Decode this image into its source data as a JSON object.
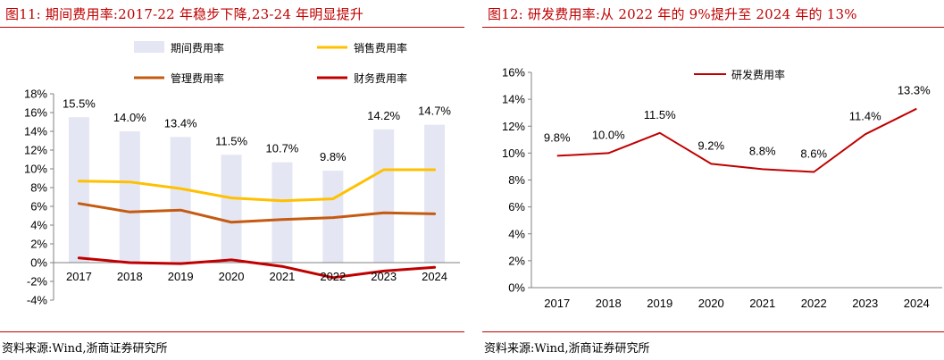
{
  "left": {
    "title": "图11:  期间费用率:2017-22 年稳步下降,23-24 年明显提升",
    "source": "资料来源:Wind,浙商证券研究所",
    "chart_data": {
      "type": "bar",
      "categories": [
        "2017",
        "2018",
        "2019",
        "2020",
        "2021",
        "2022",
        "2023",
        "2024"
      ],
      "ylim": [
        -4,
        18
      ],
      "yticks": [
        "-4%",
        "-2%",
        "0%",
        "2%",
        "4%",
        "6%",
        "8%",
        "10%",
        "12%",
        "14%",
        "16%",
        "18%"
      ],
      "legend_position": "top",
      "series": [
        {
          "name": "期间费用率",
          "kind": "bar",
          "color": "#e4e6f3",
          "values": [
            15.5,
            14.0,
            13.4,
            11.5,
            10.7,
            9.8,
            14.2,
            14.7
          ],
          "labels": [
            "15.5%",
            "14.0%",
            "13.4%",
            "11.5%",
            "10.7%",
            "9.8%",
            "14.2%",
            "14.7%"
          ]
        },
        {
          "name": "销售费用率",
          "kind": "line",
          "color": "#ffc000",
          "values": [
            8.7,
            8.6,
            7.9,
            6.9,
            6.6,
            6.8,
            9.9,
            9.9
          ]
        },
        {
          "name": "管理费用率",
          "kind": "line",
          "color": "#c55a11",
          "values": [
            6.3,
            5.4,
            5.6,
            4.3,
            4.6,
            4.8,
            5.3,
            5.2
          ]
        },
        {
          "name": "财务费用率",
          "kind": "line",
          "color": "#c00000",
          "values": [
            0.5,
            0.0,
            -0.1,
            0.3,
            -0.4,
            -1.6,
            -0.9,
            -0.5
          ]
        }
      ]
    }
  },
  "right": {
    "title": "图12:  研发费用率:从 2022 年的 9%提升至 2024 年的 13%",
    "source": "资料来源:Wind,浙商证券研究所",
    "chart_data": {
      "type": "line",
      "categories": [
        "2017",
        "2018",
        "2019",
        "2020",
        "2021",
        "2022",
        "2023",
        "2024"
      ],
      "ylim": [
        0,
        16
      ],
      "yticks": [
        "0%",
        "2%",
        "4%",
        "6%",
        "8%",
        "10%",
        "12%",
        "14%",
        "16%"
      ],
      "legend_position": "top",
      "series": [
        {
          "name": "研发费用率",
          "color": "#c00000",
          "values": [
            9.8,
            10.0,
            11.5,
            9.2,
            8.8,
            8.6,
            11.4,
            13.3
          ],
          "labels": [
            "9.8%",
            "10.0%",
            "11.5%",
            "9.2%",
            "8.8%",
            "8.6%",
            "11.4%",
            "13.3%"
          ]
        }
      ]
    }
  }
}
